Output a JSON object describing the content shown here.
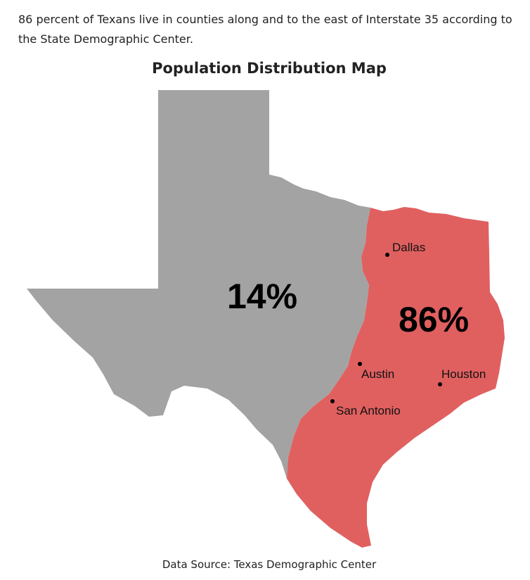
{
  "intro": "86 percent of Texans live in counties along and to the east of Interstate 35 according to the State Demographic Center.",
  "map": {
    "title": "Population Distribution Map",
    "regions": [
      {
        "label": "14%"
      },
      {
        "label": "86%"
      }
    ],
    "cities": [
      {
        "name": "Dallas"
      },
      {
        "name": "Austin"
      },
      {
        "name": "San Antonio"
      },
      {
        "name": "Houston"
      }
    ]
  },
  "source": "Data Source: Texas Demographic Center"
}
